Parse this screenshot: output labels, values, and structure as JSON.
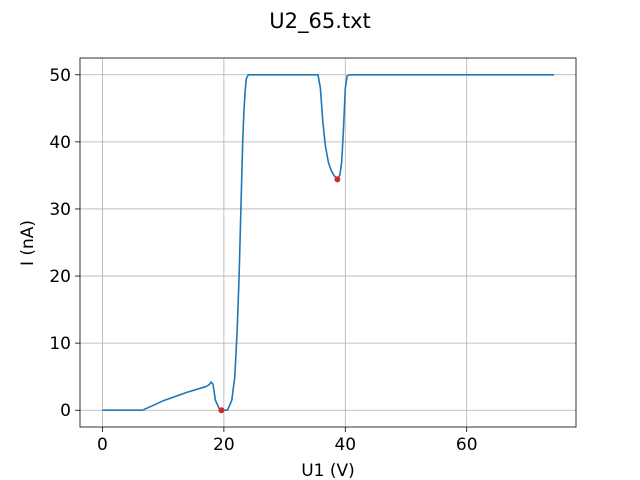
{
  "chart_data": {
    "type": "line",
    "title": "U2_65.txt",
    "xlabel": "U1 (V)",
    "ylabel": "I (nA)",
    "xlim": [
      -3.7,
      78.0
    ],
    "ylim": [
      -2.5,
      52.5
    ],
    "xticks": [
      0,
      20,
      40,
      60
    ],
    "yticks": [
      0,
      10,
      20,
      30,
      40,
      50
    ],
    "xtick_labels": [
      "0",
      "20",
      "40",
      "60"
    ],
    "ytick_labels": [
      "0",
      "10",
      "20",
      "30",
      "40",
      "50"
    ],
    "grid": true,
    "series": [
      {
        "color": "#1f77b4",
        "x": [
          0,
          6.6,
          10,
          14,
          17.0,
          17.6,
          17.9,
          18.2,
          18.6,
          19.3,
          19.6,
          20.6,
          21.3,
          21.8,
          22.2,
          22.5,
          22.8,
          23.1,
          23.3,
          23.5,
          23.7,
          24.0,
          24.5,
          28,
          32,
          35.5,
          35.9,
          36.3,
          36.7,
          37.2,
          37.7,
          38.2,
          38.7,
          39.1,
          39.4,
          39.7,
          40.0,
          40.3,
          40.7,
          41.5,
          50,
          60,
          74.4
        ],
        "y": [
          0,
          0,
          1.4,
          2.7,
          3.5,
          3.8,
          4.2,
          3.9,
          1.5,
          0.1,
          0,
          0,
          1.5,
          5.0,
          12.0,
          20.0,
          30.0,
          40.0,
          44.5,
          47.5,
          49.4,
          50.0,
          50.0,
          50.0,
          50.0,
          50.0,
          48.0,
          43.0,
          39.5,
          37.0,
          35.7,
          34.9,
          34.6,
          35.0,
          37.0,
          42.0,
          48.0,
          49.8,
          50.0,
          50.0,
          50.0,
          50.0,
          50.0
        ]
      }
    ],
    "markers": {
      "color": "#d62728",
      "x": [
        19.6,
        38.7
      ],
      "y": [
        0.0,
        34.4
      ]
    }
  }
}
